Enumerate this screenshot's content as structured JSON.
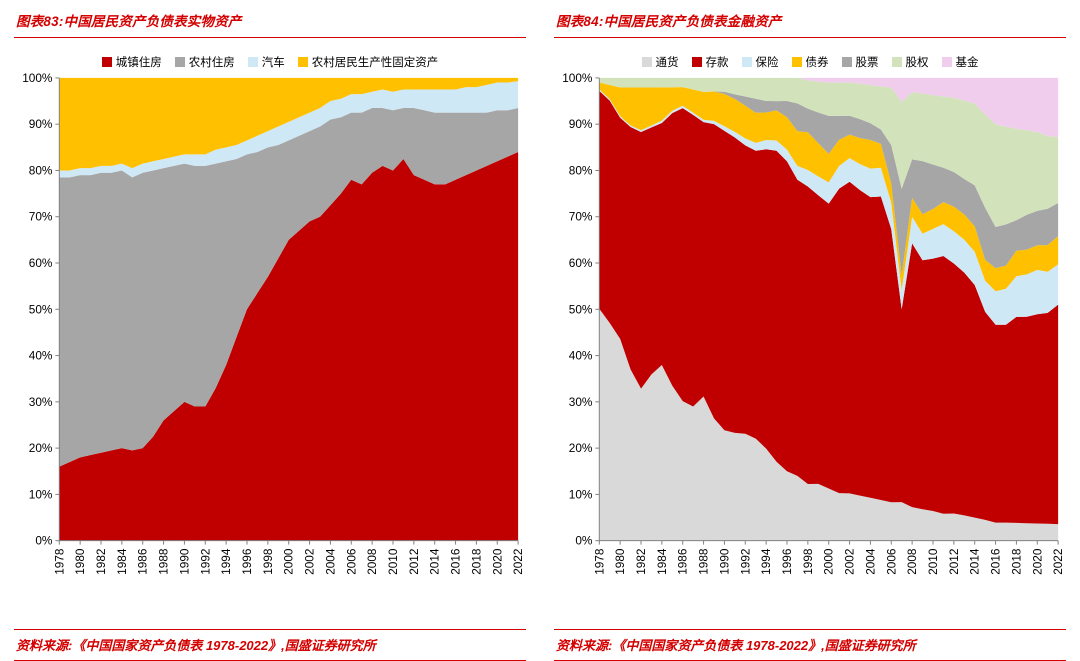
{
  "page": {
    "accent_red": "#d40000",
    "axis_color": "#808080",
    "text_color": "#000000"
  },
  "chart_data": [
    {
      "type": "area",
      "stacked_percent": true,
      "title": "图表83:中国居民资产负债表实物资产",
      "source": "资料来源:《中国国家资产负债表 1978-2022》,国盛证券研究所",
      "legend_position": "top",
      "grid": false,
      "ylim": [
        0,
        100
      ],
      "ytick_step": 10,
      "xtick_step": 2,
      "x": [
        1978,
        1979,
        1980,
        1981,
        1982,
        1983,
        1984,
        1985,
        1986,
        1987,
        1988,
        1989,
        1990,
        1991,
        1992,
        1993,
        1994,
        1995,
        1996,
        1997,
        1998,
        1999,
        2000,
        2001,
        2002,
        2003,
        2004,
        2005,
        2006,
        2007,
        2008,
        2009,
        2010,
        2011,
        2012,
        2013,
        2014,
        2015,
        2016,
        2017,
        2018,
        2019,
        2020,
        2021,
        2022
      ],
      "series": [
        {
          "key": "urban-housing",
          "name": "城镇住房",
          "color": "#c00000",
          "values": [
            16,
            17,
            18,
            18.5,
            19,
            19.5,
            20,
            19.5,
            20,
            22.5,
            26,
            28,
            30,
            29,
            29,
            33,
            38,
            44,
            50,
            53.5,
            57,
            61,
            65,
            67,
            69,
            70,
            72.5,
            75,
            78,
            77,
            79.5,
            81,
            80,
            82.5,
            79,
            78,
            77,
            77,
            78,
            79,
            80,
            81,
            82,
            83,
            84
          ]
        },
        {
          "key": "rural-housing",
          "name": "农村住房",
          "color": "#a6a6a6",
          "values": [
            62.5,
            61.5,
            61,
            60.5,
            60.5,
            60,
            60,
            59,
            59.5,
            57.5,
            54.5,
            53,
            51.5,
            52,
            52,
            48.5,
            44,
            38.5,
            33.5,
            30.5,
            28,
            24.5,
            21.5,
            20.5,
            19.5,
            19.5,
            18.5,
            16.5,
            14.5,
            15.5,
            14,
            12.5,
            13,
            11,
            14.5,
            15,
            15.5,
            15.5,
            14.5,
            13.5,
            12.5,
            11.5,
            11,
            10,
            9.5
          ]
        },
        {
          "key": "cars",
          "name": "汽车",
          "color": "#cfe8f6",
          "values": [
            1.5,
            1.5,
            1.5,
            1.5,
            1.5,
            1.5,
            1.5,
            2,
            2,
            2,
            2,
            2,
            2,
            2.5,
            2.5,
            3,
            3,
            3,
            3,
            3.5,
            3.5,
            4,
            4,
            4,
            4,
            4,
            4,
            4,
            4,
            4,
            3.5,
            4,
            4,
            4,
            4,
            4.5,
            5,
            5,
            5,
            5.5,
            5.5,
            6,
            6,
            6,
            5.8
          ]
        },
        {
          "key": "rural-productive-fixed-assets",
          "name": "农村居民生产性固定资产",
          "color": "#ffc000",
          "values": [
            20,
            20,
            19.5,
            19.5,
            19,
            19,
            18.5,
            19.5,
            18.5,
            18,
            17.5,
            17,
            16.5,
            16.5,
            16.5,
            15.5,
            15,
            14.5,
            13.5,
            12.5,
            11.5,
            10.5,
            9.5,
            8.5,
            7.5,
            6.5,
            5,
            4.5,
            3.5,
            3.5,
            3,
            2.5,
            3,
            2.5,
            2.5,
            2.5,
            2.5,
            2.5,
            2.5,
            2,
            2,
            1.5,
            1,
            1,
            0.7
          ]
        }
      ]
    },
    {
      "type": "area",
      "stacked_percent": true,
      "title": "图表84:中国居民资产负债表金融资产",
      "source": "资料来源:《中国国家资产负债表 1978-2022》,国盛证券研究所",
      "legend_position": "top",
      "grid": false,
      "ylim": [
        0,
        100
      ],
      "ytick_step": 10,
      "xtick_step": 2,
      "x": [
        1978,
        1979,
        1980,
        1981,
        1982,
        1983,
        1984,
        1985,
        1986,
        1987,
        1988,
        1989,
        1990,
        1991,
        1992,
        1993,
        1994,
        1995,
        1996,
        1997,
        1998,
        1999,
        2000,
        2001,
        2002,
        2003,
        2004,
        2005,
        2006,
        2007,
        2008,
        2009,
        2010,
        2011,
        2012,
        2013,
        2014,
        2015,
        2016,
        2017,
        2018,
        2019,
        2020,
        2021,
        2022
      ],
      "series": [
        {
          "key": "currency",
          "name": "通货",
          "color": "#d9d9d9",
          "values": [
            50,
            46,
            42,
            36,
            32,
            35,
            37,
            33,
            30,
            29,
            31,
            27,
            24,
            23,
            23,
            22,
            20,
            17,
            15,
            14,
            12,
            12,
            11,
            10,
            10,
            9.5,
            9,
            8.5,
            8,
            8,
            7,
            6.5,
            6,
            5.5,
            5.5,
            5,
            4.5,
            4,
            3.5,
            3.5,
            3.5,
            3.5,
            3.5,
            3.5,
            3.5
          ]
        },
        {
          "key": "deposits",
          "name": "存款",
          "color": "#c00000",
          "values": [
            47,
            47,
            46,
            51,
            54,
            52,
            51,
            58,
            63,
            63,
            59,
            65,
            65,
            63,
            62,
            62,
            65,
            67,
            67,
            64,
            63,
            61,
            60,
            64,
            66,
            64.5,
            63,
            63.5,
            57,
            40,
            55,
            51.5,
            51,
            52.5,
            50.5,
            48,
            45.5,
            40,
            38.5,
            38.5,
            40.5,
            41.5,
            42.5,
            43.5,
            46.5
          ]
        },
        {
          "key": "insurance",
          "name": "保险",
          "color": "#cfe8f6",
          "values": [
            0.3,
            0.3,
            0.3,
            0.3,
            0.4,
            0.4,
            0.5,
            0.5,
            0.5,
            0.5,
            0.5,
            0.7,
            1,
            1.2,
            1.5,
            1.7,
            2,
            2.2,
            2.5,
            3,
            3.5,
            4,
            4.5,
            4.8,
            5,
            5.5,
            6,
            6,
            5.5,
            4,
            5.5,
            5.5,
            6,
            6.5,
            6.5,
            6.5,
            6.5,
            6,
            6.5,
            7,
            8,
            8.5,
            9,
            8.5,
            8.5
          ]
        },
        {
          "key": "bonds",
          "name": "债券",
          "color": "#ffc000",
          "values": [
            1.5,
            3,
            6,
            8,
            9,
            8,
            7,
            5,
            4,
            5,
            6,
            6.5,
            7,
            7,
            7,
            6.5,
            6,
            6.5,
            7,
            7.5,
            8,
            7,
            6,
            5.5,
            5,
            5.5,
            6,
            5,
            4,
            3,
            4,
            4,
            4,
            4.5,
            5,
            5,
            5,
            4,
            4.5,
            4.5,
            5,
            5,
            5,
            5.5,
            6
          ]
        },
        {
          "key": "stocks",
          "name": "股票",
          "color": "#a6a6a6",
          "values": [
            0,
            0,
            0,
            0,
            0,
            0,
            0,
            0,
            0,
            0,
            0,
            0,
            0.5,
            1,
            2,
            3,
            2.5,
            2,
            3.5,
            6,
            5,
            6.5,
            8,
            5,
            4,
            4,
            3.5,
            3,
            8,
            18,
            8,
            11,
            9,
            7,
            7,
            7,
            8,
            10,
            8,
            8,
            6,
            7,
            7,
            7.5,
            7
          ]
        },
        {
          "key": "equity",
          "name": "股权",
          "color": "#d2e3bc",
          "values": [
            1,
            1.5,
            2,
            2,
            2,
            2,
            2,
            2,
            2,
            2.5,
            3,
            3,
            3,
            3.5,
            4,
            4.5,
            5,
            5,
            5,
            5.5,
            6,
            6.5,
            7,
            7,
            7,
            7.5,
            8,
            9,
            12,
            18,
            14,
            14,
            14,
            14.5,
            15,
            15.5,
            16,
            18,
            20,
            19,
            18,
            17,
            16,
            15,
            14
          ]
        },
        {
          "key": "funds",
          "name": "基金",
          "color": "#f0cdec",
          "values": [
            0,
            0,
            0,
            0,
            0,
            0,
            0,
            0,
            0,
            0,
            0,
            0,
            0,
            0,
            0,
            0,
            0,
            0,
            0,
            0,
            0.5,
            0.8,
            1,
            1,
            1,
            1.2,
            1.5,
            1.8,
            2,
            5,
            3,
            3.2,
            3.5,
            3.8,
            4,
            4.5,
            5,
            7,
            9,
            9.5,
            10,
            10.5,
            11,
            12,
            12.5
          ]
        }
      ]
    }
  ]
}
